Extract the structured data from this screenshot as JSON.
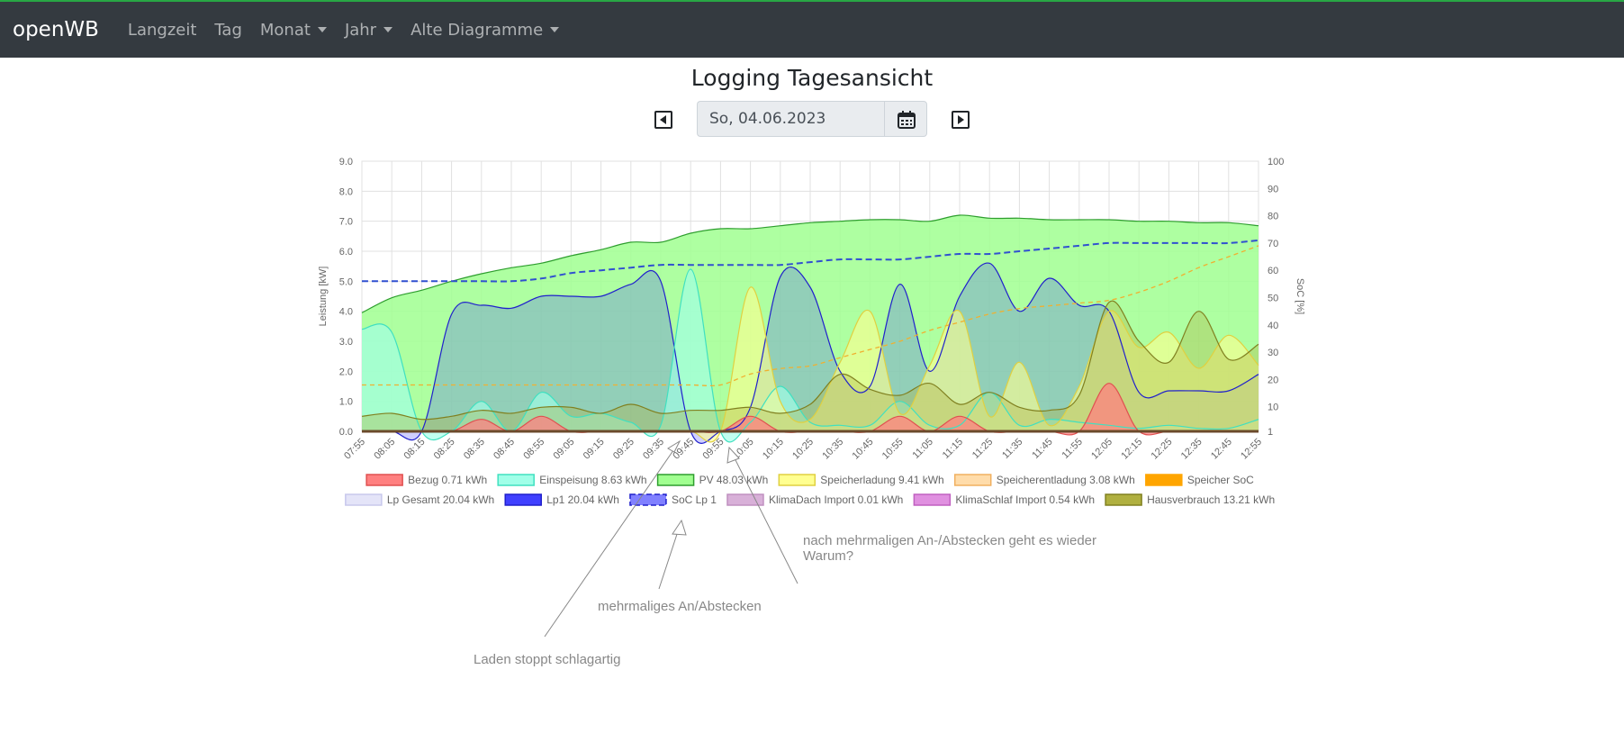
{
  "navbar": {
    "brand": "openWB",
    "items": [
      {
        "label": "Langzeit",
        "dropdown": false
      },
      {
        "label": "Tag",
        "dropdown": false
      },
      {
        "label": "Monat",
        "dropdown": true
      },
      {
        "label": "Jahr",
        "dropdown": true
      },
      {
        "label": "Alte Diagramme",
        "dropdown": true
      }
    ]
  },
  "page_title": "Logging Tagesansicht",
  "date_picker": {
    "value": "So, 04.06.2023"
  },
  "colors": {
    "navbar_bg": "#343a40",
    "accent": "#28a745"
  },
  "annotations": [
    {
      "id": "stop",
      "text": "Laden stoppt schlagartig"
    },
    {
      "id": "multi",
      "text": "mehrmaliges An/Abstecken"
    },
    {
      "id": "again1",
      "text": "nach mehrmaligen An-/Abstecken geht es wieder"
    },
    {
      "id": "again2",
      "text": "Warum?"
    }
  ],
  "chart_data": {
    "type": "area",
    "x": [
      "07:55",
      "08:05",
      "08:15",
      "08:25",
      "08:35",
      "08:45",
      "08:55",
      "09:05",
      "09:15",
      "09:25",
      "09:35",
      "09:45",
      "09:55",
      "10:05",
      "10:15",
      "10:25",
      "10:35",
      "10:45",
      "10:55",
      "11:05",
      "11:15",
      "11:25",
      "11:35",
      "11:45",
      "11:55",
      "12:05",
      "12:15",
      "12:25",
      "12:35",
      "12:45",
      "12:55"
    ],
    "ylabel": "Leistung [kW]",
    "ylim": [
      0,
      9
    ],
    "y_ticks": [
      "0.0",
      "1.0",
      "2.0",
      "3.0",
      "4.0",
      "5.0",
      "6.0",
      "7.0",
      "8.0",
      "9.0"
    ],
    "y2label": "SoC [%]",
    "y2lim": [
      1,
      100
    ],
    "y2_ticks": [
      "1",
      "10",
      "20",
      "30",
      "40",
      "50",
      "60",
      "70",
      "80",
      "90",
      "100"
    ],
    "grid": true,
    "legend_position": "bottom",
    "legend": [
      {
        "label": "Bezug 0.71 kWh",
        "color": "#ff8080",
        "border": "#e05050"
      },
      {
        "label": "Einspeisung 8.63 kWh",
        "color": "#a0ffe8",
        "border": "#40e0c0"
      },
      {
        "label": "PV 48.03 kWh",
        "color": "#a0ff90",
        "border": "#2e9e2e"
      },
      {
        "label": "Speicherladung 9.41 kWh",
        "color": "#ffff90",
        "border": "#e0d040"
      },
      {
        "label": "Speicherentladung 3.08 kWh",
        "color": "#ffdcaa",
        "border": "#f0b060"
      },
      {
        "label": "Speicher SoC",
        "color": "#ffa500",
        "border": "#ffa500"
      },
      {
        "label": "Lp Gesamt 20.04 kWh",
        "color": "#e4e4f8",
        "border": "#c8c8ec"
      },
      {
        "label": "Lp1 20.04 kWh",
        "color": "#4040ff",
        "border": "#2020cc"
      },
      {
        "label": "SoC Lp 1",
        "color": "#8080ff",
        "border": "#2020cc"
      },
      {
        "label": "KlimaDach Import 0.01 kWh",
        "color": "#d8b0d8",
        "border": "#c090c0"
      },
      {
        "label": "KlimaSchlaf Import 0.54 kWh",
        "color": "#e090e0",
        "border": "#c060c0"
      },
      {
        "label": "Hausverbrauch 13.21 kWh",
        "color": "#b0b040",
        "border": "#808020"
      }
    ],
    "series": [
      {
        "name": "PV 48.03 kWh",
        "axis": "left",
        "values": [
          3.95,
          4.45,
          4.7,
          5.0,
          5.25,
          5.45,
          5.6,
          5.85,
          6.05,
          6.3,
          6.3,
          6.6,
          6.75,
          6.75,
          6.85,
          6.95,
          7.0,
          7.05,
          7.05,
          7.0,
          7.2,
          7.1,
          7.1,
          7.05,
          7.05,
          7.05,
          7.0,
          7.0,
          6.95,
          6.95,
          6.85
        ]
      },
      {
        "name": "Lp1 20.04 kWh",
        "axis": "left",
        "values": [
          0,
          0,
          0,
          3.9,
          4.2,
          4.1,
          4.5,
          4.5,
          4.5,
          4.9,
          5.0,
          0,
          0,
          0.8,
          5.15,
          4.8,
          2.0,
          1.5,
          4.9,
          2.0,
          4.5,
          5.6,
          4.0,
          5.1,
          4.2,
          4.0,
          1.3,
          1.35,
          1.35,
          1.35,
          1.9
        ]
      },
      {
        "name": "Einspeisung 8.63 kWh",
        "axis": "left",
        "values": [
          3.4,
          3.3,
          0,
          0,
          1.0,
          0,
          1.3,
          0.5,
          0.6,
          0.3,
          0.2,
          5.4,
          0,
          0.3,
          1.5,
          0.3,
          0.2,
          0.2,
          1.0,
          0.2,
          0.2,
          1.3,
          0.2,
          0.4,
          0.3,
          0.2,
          0.1,
          0.2,
          0.1,
          0.1,
          0.4
        ]
      },
      {
        "name": "Speicherladung 9.41 kWh",
        "axis": "left",
        "values": [
          0,
          0,
          0,
          0,
          0,
          0,
          0,
          0,
          0,
          0,
          0,
          0,
          0,
          4.8,
          1.0,
          0.4,
          2.3,
          4.0,
          0.6,
          2.2,
          4.0,
          0.5,
          2.3,
          0.2,
          1.5,
          4.0,
          2.8,
          3.3,
          2.1,
          3.2,
          2.2
        ]
      },
      {
        "name": "Hausverbrauch 13.21 kWh",
        "axis": "left",
        "values": [
          0.5,
          0.6,
          0.4,
          0.5,
          0.7,
          0.6,
          0.8,
          0.8,
          0.6,
          0.9,
          0.6,
          0.7,
          0.7,
          0.8,
          0.6,
          0.9,
          1.9,
          1.4,
          1.2,
          1.6,
          0.9,
          1.3,
          0.8,
          0.7,
          1.2,
          4.3,
          3.0,
          2.3,
          4.0,
          2.4,
          2.9
        ]
      },
      {
        "name": "Bezug 0.71 kWh",
        "axis": "left",
        "values": [
          0,
          0,
          0,
          0,
          0.4,
          0,
          0.5,
          0,
          0,
          0,
          0,
          0,
          0,
          0.5,
          0,
          0,
          0,
          0,
          0.5,
          0,
          0.5,
          0,
          0,
          0,
          0,
          1.6,
          0,
          0,
          0,
          0,
          0
        ]
      },
      {
        "name": "Speicher SoC",
        "axis": "right",
        "values": [
          18,
          18,
          18,
          18,
          18,
          18,
          18,
          18,
          18,
          18,
          18,
          18,
          18,
          22,
          24,
          25,
          28,
          31,
          34,
          38,
          41,
          44,
          46,
          47,
          48,
          49,
          52,
          56,
          61,
          65,
          69
        ]
      },
      {
        "name": "SoC Lp 1",
        "axis": "right",
        "values": [
          56,
          56,
          56,
          56,
          56,
          56,
          57,
          59,
          60,
          61,
          62,
          62,
          62,
          62,
          62,
          63,
          64,
          64,
          64,
          65,
          66,
          66,
          67,
          68,
          69,
          70,
          70,
          70,
          70,
          70,
          71
        ]
      }
    ]
  }
}
